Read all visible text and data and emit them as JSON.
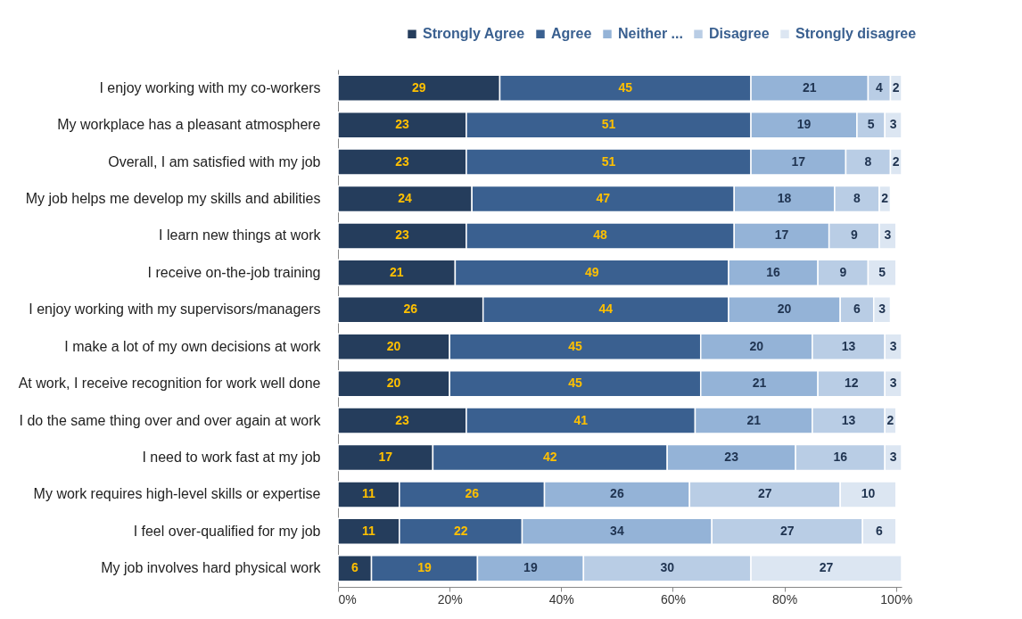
{
  "chart_data": {
    "type": "bar",
    "orientation": "horizontal",
    "stacked": true,
    "data_labels": true,
    "legend": "top right",
    "grid": false,
    "categories": [
      "I enjoy working with my co-workers",
      "My workplace has a pleasant atmosphere",
      "Overall, I am satisfied with my job",
      "My job helps me develop my skills and abilities",
      "I learn new things at work",
      "I receive on-the-job training",
      "I enjoy working with my supervisors/managers",
      "I make a lot of my own decisions at work",
      "At work, I receive recognition for work well done",
      "I do the same thing over and over again at work",
      "I need to work fast at my job",
      "My work requires high-level skills or expertise",
      "I feel over-qualified for my job",
      "My job involves hard physical work"
    ],
    "xlim": [
      0,
      101
    ],
    "xticks": [
      {
        "value": 0,
        "label": "0%"
      },
      {
        "value": 20,
        "label": "20%"
      },
      {
        "value": 40,
        "label": "40%"
      },
      {
        "value": 60,
        "label": "60%"
      },
      {
        "value": 80,
        "label": "80%"
      },
      {
        "value": 100,
        "label": "100%"
      }
    ],
    "series": [
      {
        "name": "Strongly Agree",
        "color": "#253d5c",
        "values": [
          29,
          23,
          23,
          24,
          23,
          21,
          26,
          20,
          20,
          23,
          17,
          11,
          11,
          6
        ]
      },
      {
        "name": "Agree",
        "color": "#3a6090",
        "values": [
          45,
          51,
          51,
          47,
          48,
          49,
          44,
          45,
          45,
          41,
          42,
          26,
          22,
          19
        ]
      },
      {
        "name": "Neither ...",
        "color": "#94b3d7",
        "values": [
          21,
          19,
          17,
          18,
          17,
          16,
          20,
          20,
          21,
          21,
          23,
          26,
          34,
          19
        ]
      },
      {
        "name": "Disagree",
        "color": "#b9cde5",
        "values": [
          4,
          5,
          8,
          8,
          9,
          9,
          6,
          13,
          12,
          13,
          16,
          27,
          27,
          30
        ]
      },
      {
        "name": "Strongly disagree",
        "color": "#dce6f2",
        "values": [
          2,
          3,
          2,
          2,
          3,
          5,
          3,
          3,
          3,
          2,
          3,
          10,
          6,
          27
        ]
      }
    ]
  }
}
